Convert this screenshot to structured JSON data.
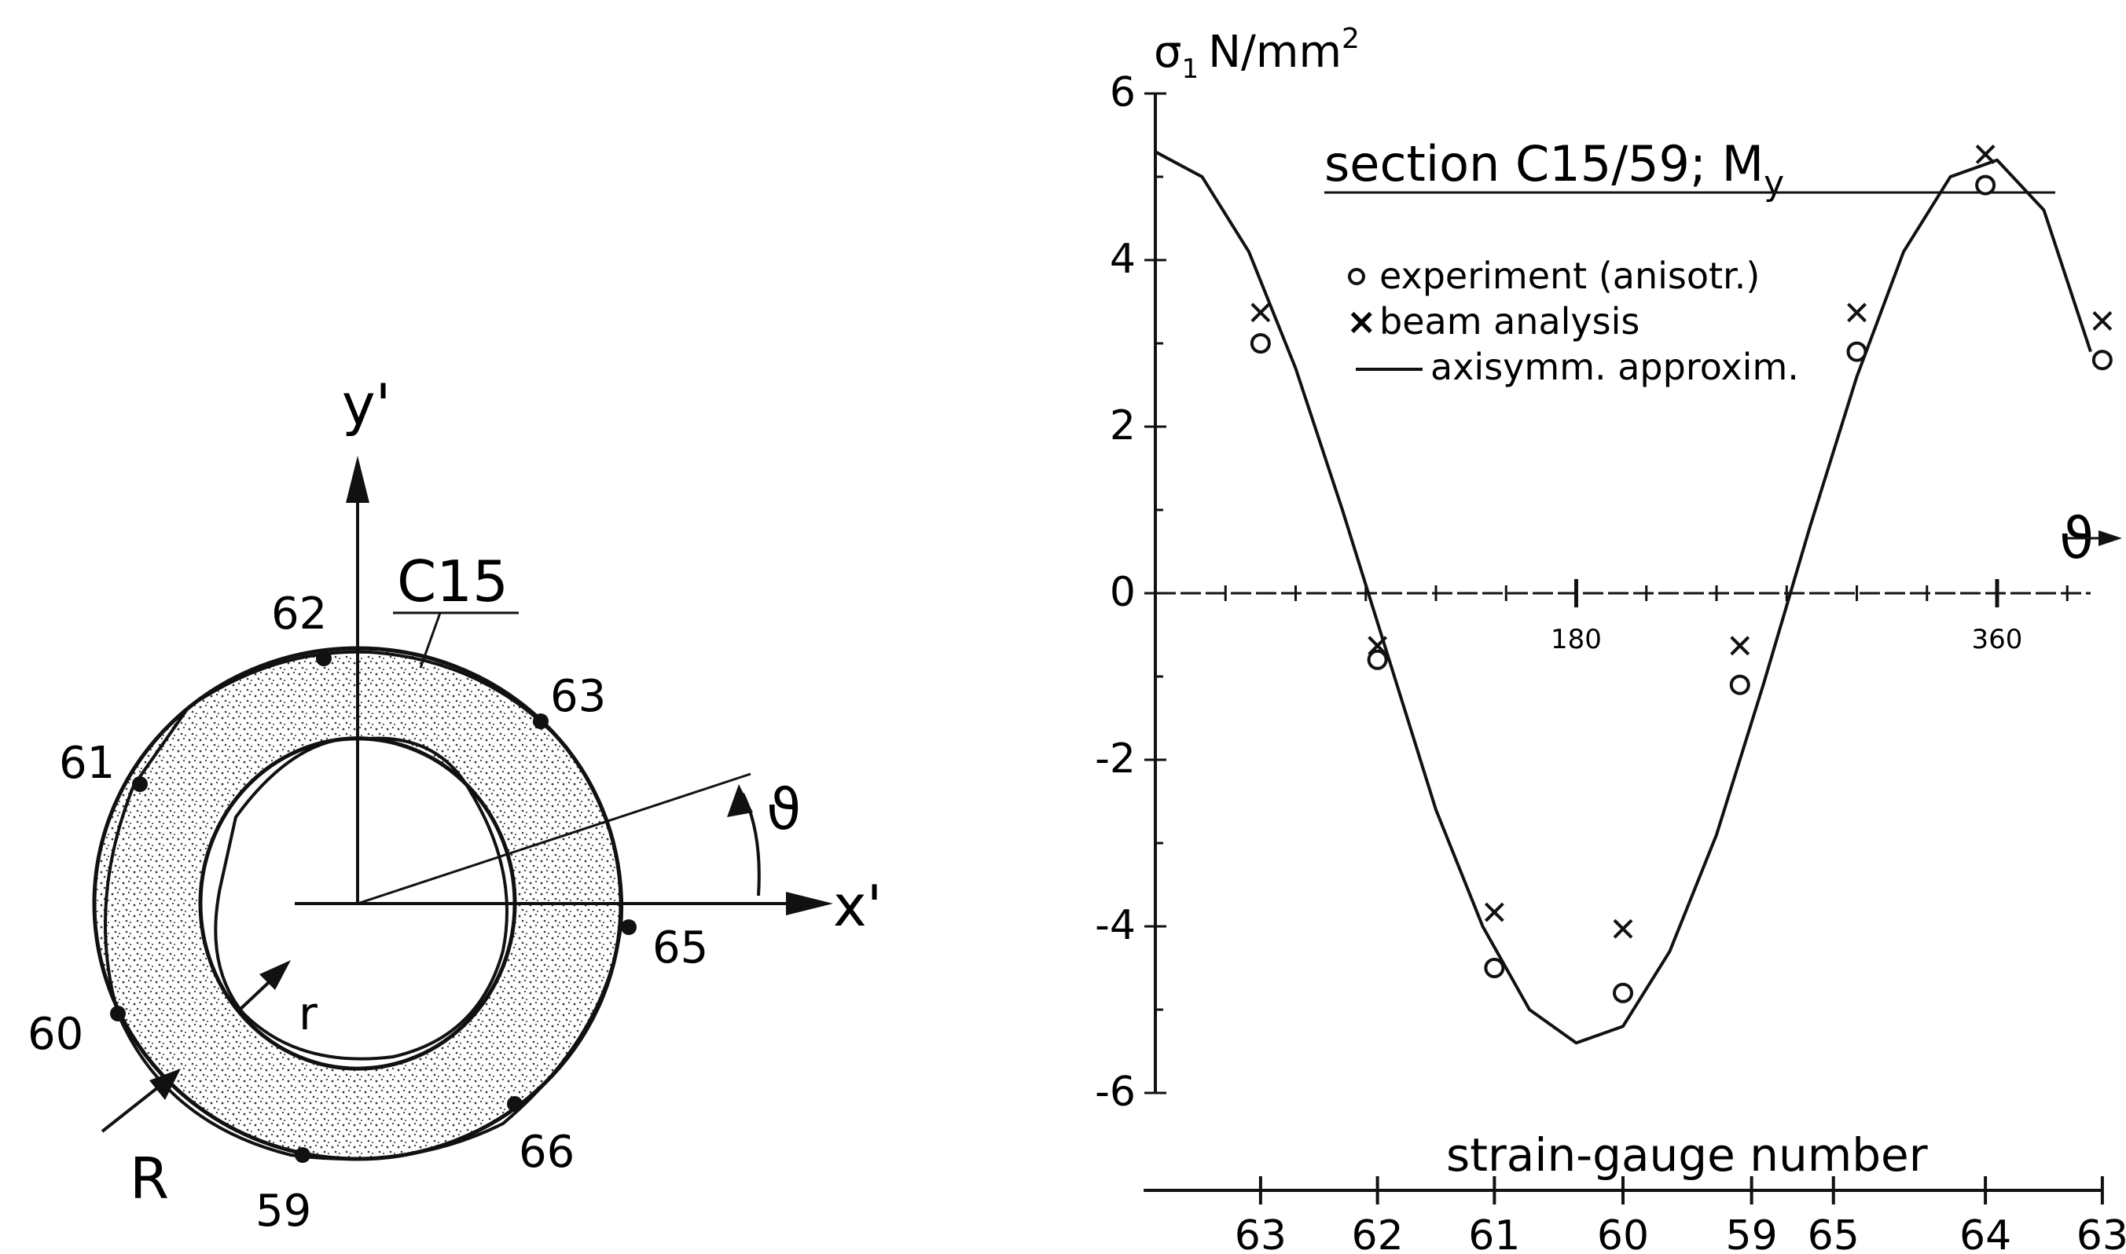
{
  "section_diagram": {
    "section_label": "C15",
    "axis_y_label": "y'",
    "axis_x_label": "x'",
    "angle_label": "ϑ",
    "inner_radius_label": "r",
    "outer_radius_label": "R",
    "gauges": [
      {
        "label": "62"
      },
      {
        "label": "63"
      },
      {
        "label": "61"
      },
      {
        "label": "65"
      },
      {
        "label": "60"
      },
      {
        "label": "66"
      },
      {
        "label": "59"
      }
    ]
  },
  "chart_data": {
    "type": "line",
    "title": "section C15/59; My",
    "title_main": "section C15/59; M",
    "title_sub": "y",
    "ylabel": "σ1 N/mm²",
    "ylabel_symbol": "σ",
    "ylabel_sub": "1",
    "ylabel_unit": "N/mm",
    "ylabel_sup": "2",
    "xlabel": "ϑ",
    "ylim": [
      -6,
      6
    ],
    "xlim": [
      0,
      400
    ],
    "y_ticks": [
      "6",
      "4",
      "2",
      "0",
      "-2",
      "-4",
      "-6"
    ],
    "x_ticks": [
      "180",
      "360"
    ],
    "legend": [
      {
        "marker": "o",
        "label": "experiment (anisotr.)"
      },
      {
        "marker": "x",
        "label": "beam analysis"
      },
      {
        "marker": "—",
        "label": "axisymm. approxim."
      }
    ],
    "legend_placement": "top-center",
    "grid": false,
    "series": [
      {
        "name": "axisymm. approxim.",
        "style": "line",
        "x": [
          0,
          20,
          40,
          60,
          80,
          100,
          120,
          140,
          160,
          180,
          200,
          220,
          240,
          260,
          280,
          300,
          320,
          340,
          360,
          380,
          400
        ],
        "y": [
          5.3,
          5.0,
          4.1,
          2.7,
          1.0,
          -0.8,
          -2.6,
          -4.0,
          -5.0,
          -5.4,
          -5.2,
          -4.3,
          -2.9,
          -1.1,
          0.8,
          2.6,
          4.1,
          5.0,
          5.2,
          4.6,
          2.9
        ]
      },
      {
        "name": "experiment (anisotr.)",
        "style": "o",
        "x": [
          45,
          95,
          145,
          200,
          250,
          300,
          355,
          405
        ],
        "y": [
          3.0,
          -0.8,
          -4.5,
          -4.8,
          -1.1,
          2.9,
          4.9,
          2.8
        ]
      },
      {
        "name": "beam analysis",
        "style": "x",
        "x": [
          45,
          95,
          145,
          200,
          250,
          300,
          355,
          405
        ],
        "y": [
          3.2,
          -0.8,
          -4.0,
          -4.2,
          -0.8,
          3.2,
          5.1,
          3.1
        ]
      }
    ],
    "secondary_axis": {
      "label": "strain-gauge number",
      "gauges": [
        {
          "label": "63",
          "x": 45
        },
        {
          "label": "62",
          "x": 95
        },
        {
          "label": "61",
          "x": 145
        },
        {
          "label": "60",
          "x": 200
        },
        {
          "label": "59",
          "x": 255
        },
        {
          "label": "65",
          "x": 290
        },
        {
          "label": "64",
          "x": 355
        },
        {
          "label": "63",
          "x": 405
        }
      ]
    }
  }
}
